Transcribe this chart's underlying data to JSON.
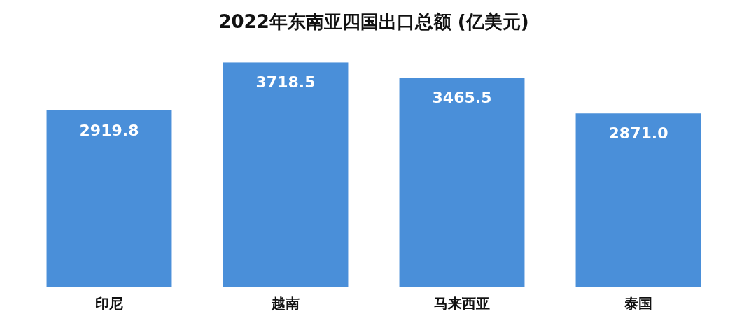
{
  "chart_data": {
    "type": "bar",
    "title": "2022年东南亚四国出口总额 (亿美元)",
    "categories": [
      "印尼",
      "越南",
      "马来西亚",
      "泰国"
    ],
    "values": [
      2919.8,
      3718.5,
      3465.5,
      2871.0
    ],
    "value_labels": [
      "2919.8",
      "3718.5",
      "3465.5",
      "2871.0"
    ],
    "color": "#4a8fd9",
    "grid": false,
    "legend": false
  }
}
